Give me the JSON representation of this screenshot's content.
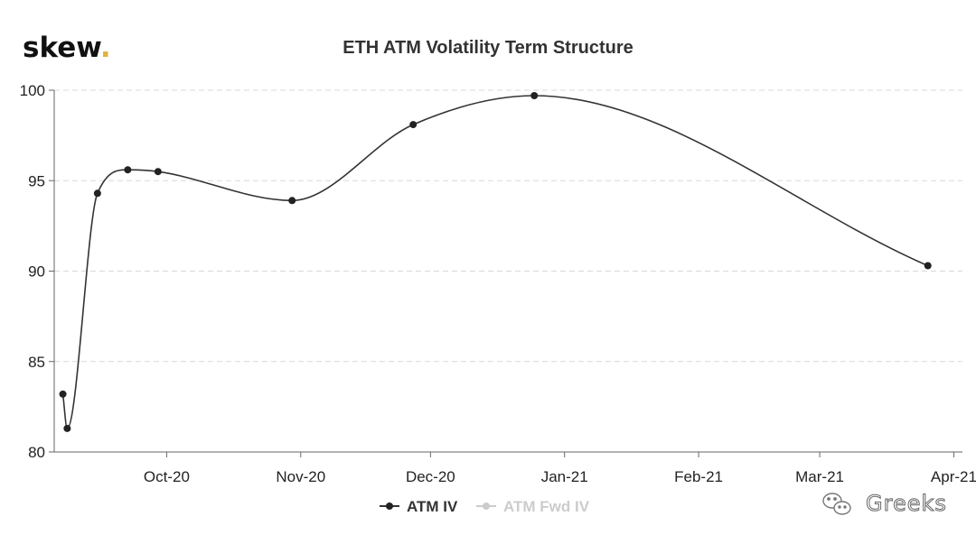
{
  "brand": {
    "name": "skew",
    "dot": ".",
    "dot_color": "#e3b23c"
  },
  "watermark": {
    "text": "Greeks"
  },
  "chart_data": {
    "type": "line",
    "title": "ETH ATM Volatility Term Structure",
    "xlabel": "",
    "ylabel": "",
    "ylim": [
      80,
      100
    ],
    "yticks": [
      80,
      85,
      90,
      95,
      100
    ],
    "xlim": [
      "2020-09-05",
      "2021-04-03"
    ],
    "xticks": [
      {
        "date": "2020-10-01",
        "label": "Oct-20"
      },
      {
        "date": "2020-11-01",
        "label": "Nov-20"
      },
      {
        "date": "2020-12-01",
        "label": "Dec-20"
      },
      {
        "date": "2021-01-01",
        "label": "Jan-21"
      },
      {
        "date": "2021-02-01",
        "label": "Feb-21"
      },
      {
        "date": "2021-03-01",
        "label": "Mar-21"
      },
      {
        "date": "2021-04-01",
        "label": "Apr-21"
      }
    ],
    "grid": true,
    "legend_position": "bottom",
    "series": [
      {
        "name": "ATM IV",
        "color": "#333333",
        "visible": true,
        "points": [
          {
            "x": "2020-09-07",
            "y": 83.2
          },
          {
            "x": "2020-09-08",
            "y": 81.3
          },
          {
            "x": "2020-09-15",
            "y": 94.3
          },
          {
            "x": "2020-09-22",
            "y": 95.6
          },
          {
            "x": "2020-09-29",
            "y": 95.5
          },
          {
            "x": "2020-10-30",
            "y": 93.9
          },
          {
            "x": "2020-11-27",
            "y": 98.1
          },
          {
            "x": "2020-12-25",
            "y": 99.7
          },
          {
            "x": "2021-03-26",
            "y": 90.3
          }
        ]
      },
      {
        "name": "ATM Fwd IV",
        "color": "#cccccc",
        "visible": false,
        "points": []
      }
    ]
  }
}
